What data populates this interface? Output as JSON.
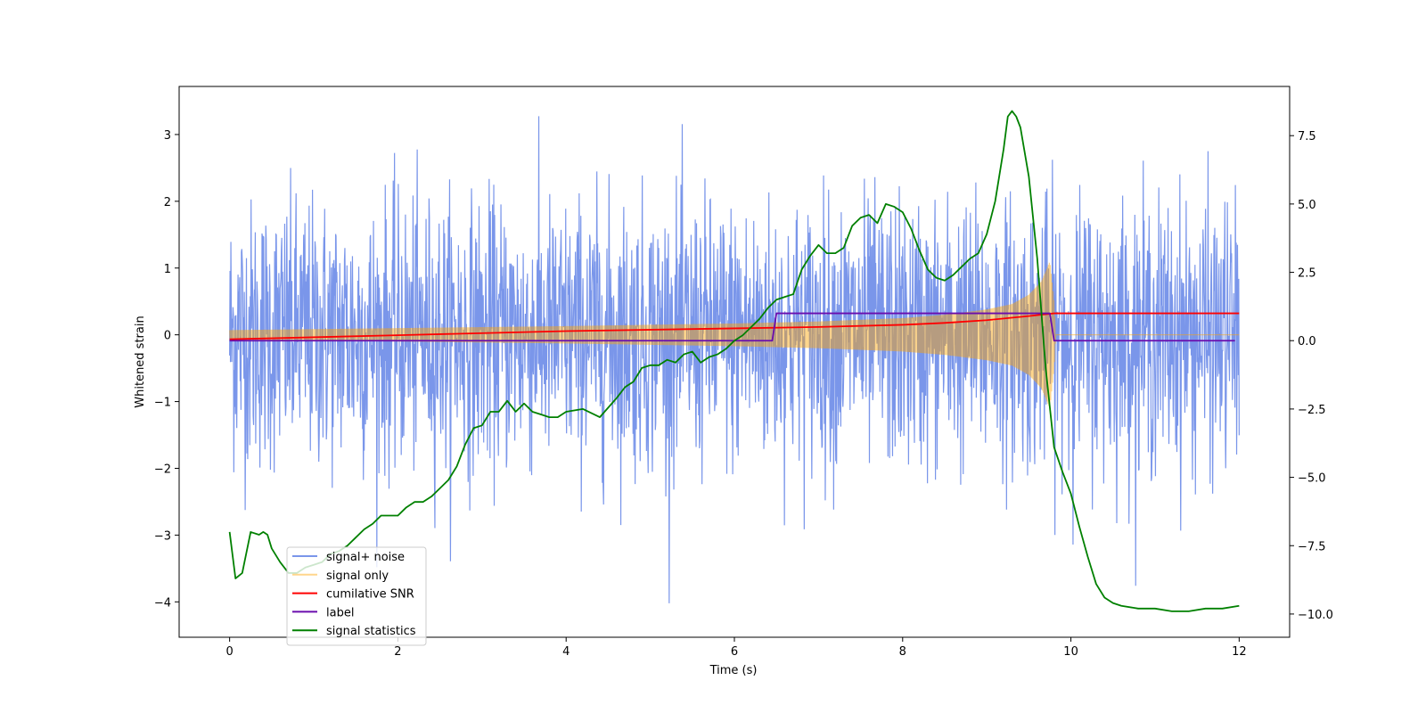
{
  "chart_data": {
    "type": "line",
    "title": "",
    "xlabel": "Time (s)",
    "ylabel": "Whitened strain",
    "y2label": "",
    "xlim": [
      -0.6,
      12.6
    ],
    "ylim": [
      -4.53,
      3.72
    ],
    "y2lim": [
      -10.85,
      9.3
    ],
    "x_ticks": [
      0,
      2,
      4,
      6,
      8,
      10,
      12
    ],
    "y_ticks": [
      -4,
      -3,
      -2,
      -1,
      0,
      1,
      2,
      3
    ],
    "y2_ticks": [
      -10.0,
      -7.5,
      -5.0,
      -2.5,
      0.0,
      2.5,
      5.0,
      7.5
    ],
    "x_tick_labels": [
      "0",
      "2",
      "4",
      "6",
      "8",
      "10",
      "12"
    ],
    "y_tick_labels": [
      "−4",
      "−3",
      "−2",
      "−1",
      "0",
      "1",
      "2",
      "3"
    ],
    "y2_tick_labels": [
      "−10.0",
      "−7.5",
      "−5.0",
      "−2.5",
      "0.0",
      "2.5",
      "5.0",
      "7.5"
    ],
    "legend_position": "lower-left",
    "series": [
      {
        "name": "signal+ noise",
        "axis": "left",
        "color": "#4169e1",
        "kind": "noise",
        "noise_sigma": 1.0,
        "x_range": [
          0,
          12
        ],
        "samples": 2400
      },
      {
        "name": "signal only",
        "axis": "left",
        "color": "#ffa500",
        "kind": "chirp_envelope",
        "envelope": {
          "x": [
            0,
            2,
            4,
            6,
            7,
            8,
            8.5,
            9,
            9.3,
            9.5,
            9.65,
            9.75,
            9.8,
            9.82
          ],
          "amplitude": [
            0.07,
            0.1,
            0.13,
            0.17,
            0.2,
            0.25,
            0.3,
            0.38,
            0.46,
            0.6,
            0.8,
            1.1,
            0.5,
            0.0
          ]
        },
        "x_range": [
          0,
          12
        ]
      },
      {
        "name": "cumilative SNR",
        "axis": "right",
        "color": "#ff0000",
        "x": [
          0,
          2,
          4,
          6,
          7,
          8,
          8.5,
          9,
          9.5,
          9.8,
          9.82,
          12
        ],
        "values": [
          0.05,
          0.2,
          0.35,
          0.45,
          0.5,
          0.58,
          0.65,
          0.75,
          0.9,
          1.0,
          1.0,
          1.0
        ]
      },
      {
        "name": "label",
        "axis": "right",
        "color": "#6a0dad",
        "x": [
          0,
          6.45,
          6.5,
          9.75,
          9.8,
          11.95
        ],
        "values": [
          0,
          0,
          1,
          1,
          0,
          0
        ]
      },
      {
        "name": "signal statistics",
        "axis": "right",
        "color": "#008000",
        "x": [
          0,
          0.07,
          0.15,
          0.25,
          0.35,
          0.4,
          0.45,
          0.5,
          0.6,
          0.7,
          0.8,
          0.9,
          1.0,
          1.1,
          1.2,
          1.3,
          1.4,
          1.5,
          1.6,
          1.7,
          1.8,
          1.9,
          2.0,
          2.1,
          2.2,
          2.3,
          2.4,
          2.5,
          2.6,
          2.7,
          2.8,
          2.9,
          3.0,
          3.1,
          3.2,
          3.3,
          3.4,
          3.5,
          3.6,
          3.7,
          3.8,
          3.9,
          4.0,
          4.2,
          4.4,
          4.6,
          4.7,
          4.8,
          4.9,
          5.0,
          5.1,
          5.2,
          5.3,
          5.4,
          5.5,
          5.6,
          5.7,
          5.8,
          5.9,
          6.0,
          6.1,
          6.2,
          6.3,
          6.4,
          6.5,
          6.6,
          6.7,
          6.8,
          6.9,
          7.0,
          7.1,
          7.2,
          7.3,
          7.4,
          7.5,
          7.6,
          7.7,
          7.8,
          7.9,
          8.0,
          8.1,
          8.2,
          8.3,
          8.4,
          8.5,
          8.6,
          8.7,
          8.8,
          8.9,
          9.0,
          9.1,
          9.2,
          9.25,
          9.3,
          9.35,
          9.4,
          9.5,
          9.6,
          9.7,
          9.8,
          9.9,
          10.0,
          10.1,
          10.2,
          10.3,
          10.4,
          10.5,
          10.6,
          10.8,
          11.0,
          11.2,
          11.4,
          11.6,
          11.8,
          12.0
        ],
        "values": [
          -7.0,
          -8.7,
          -8.5,
          -7.0,
          -7.1,
          -7.0,
          -7.1,
          -7.6,
          -8.1,
          -8.5,
          -8.5,
          -8.3,
          -8.2,
          -8.1,
          -7.8,
          -7.7,
          -7.5,
          -7.2,
          -6.9,
          -6.7,
          -6.4,
          -6.4,
          -6.4,
          -6.1,
          -5.9,
          -5.9,
          -5.7,
          -5.4,
          -5.1,
          -4.6,
          -3.8,
          -3.2,
          -3.1,
          -2.6,
          -2.6,
          -2.2,
          -2.6,
          -2.3,
          -2.6,
          -2.7,
          -2.8,
          -2.8,
          -2.6,
          -2.5,
          -2.8,
          -2.1,
          -1.7,
          -1.5,
          -1.0,
          -0.9,
          -0.9,
          -0.7,
          -0.8,
          -0.5,
          -0.4,
          -0.8,
          -0.6,
          -0.5,
          -0.3,
          0.0,
          0.2,
          0.5,
          0.8,
          1.2,
          1.5,
          1.6,
          1.7,
          2.6,
          3.1,
          3.5,
          3.2,
          3.2,
          3.4,
          4.2,
          4.5,
          4.6,
          4.3,
          5.0,
          4.9,
          4.7,
          4.1,
          3.3,
          2.6,
          2.3,
          2.2,
          2.4,
          2.7,
          3.0,
          3.2,
          3.9,
          5.1,
          7.0,
          8.2,
          8.4,
          8.2,
          7.8,
          6.0,
          3.0,
          -1.0,
          -3.9,
          -4.8,
          -5.6,
          -6.8,
          -7.9,
          -8.9,
          -9.4,
          -9.6,
          -9.7,
          -9.8,
          -9.8,
          -9.9,
          -9.9,
          -9.8,
          -9.8,
          -9.7
        ]
      }
    ]
  }
}
